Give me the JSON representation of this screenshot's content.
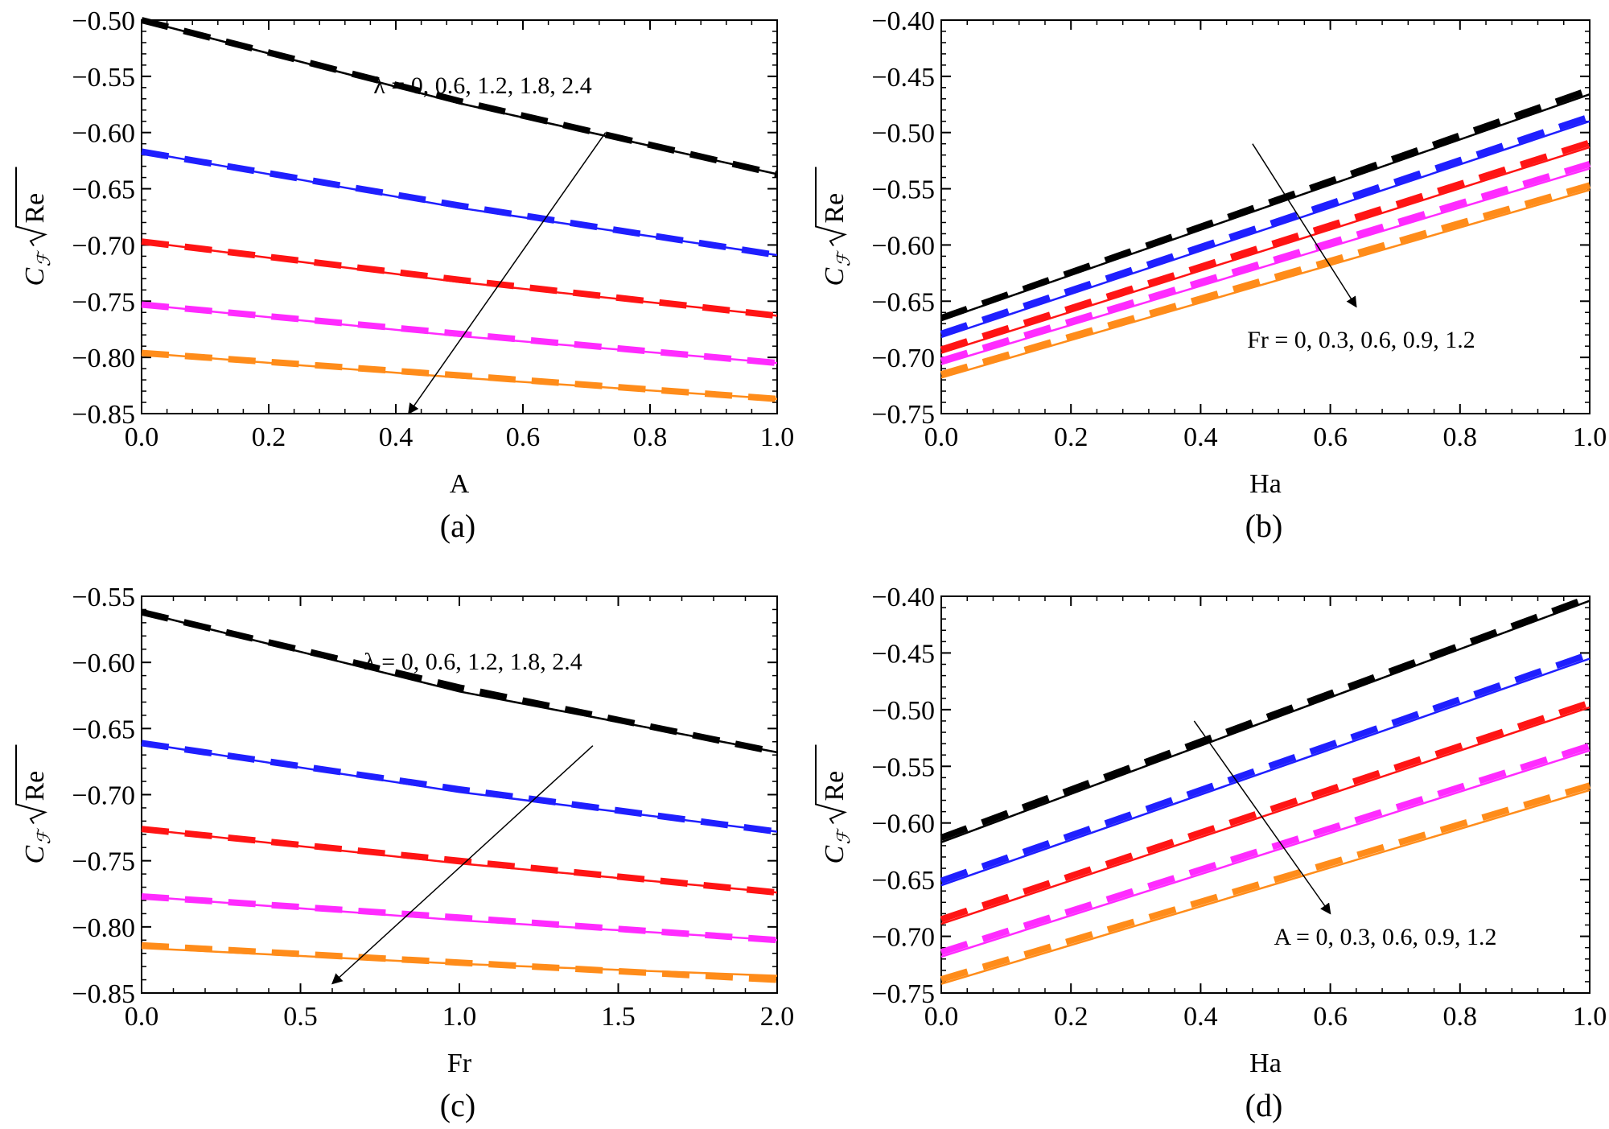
{
  "chart_data": [
    {
      "id": "a",
      "type": "line",
      "panel_label": "(a)",
      "xlabel": "A",
      "ylabel": {
        "main": "C",
        "sub": "ℱ",
        "radicand": "Re"
      },
      "xlim": [
        0,
        1.0
      ],
      "ylim": [
        -0.85,
        -0.5
      ],
      "xticks": [
        0.0,
        0.2,
        0.4,
        0.6,
        0.8,
        1.0
      ],
      "xtick_labels": [
        "0.0",
        "0.2",
        "0.4",
        "0.6",
        "0.8",
        "1.0"
      ],
      "yticks": [
        -0.85,
        -0.8,
        -0.75,
        -0.7,
        -0.65,
        -0.6,
        -0.55,
        -0.5
      ],
      "ytick_labels": [
        "−0.85",
        "−0.80",
        "−0.75",
        "−0.70",
        "−0.65",
        "−0.60",
        "−0.55",
        "−0.50"
      ],
      "annotation": "λ = 0, 0.6, 1.2, 1.8, 2.4",
      "arrow": {
        "from": [
          0.73,
          -0.6
        ],
        "to": [
          0.42,
          -0.85
        ]
      },
      "series": [
        {
          "name": "λ = 0",
          "color": "#000000",
          "x": [
            0,
            0.5,
            1.0
          ],
          "solid": [
            -0.5,
            -0.574,
            -0.637
          ],
          "dashed": [
            -0.5,
            -0.572,
            -0.637
          ]
        },
        {
          "name": "λ = 0.6",
          "color": "#1f1fff",
          "x": [
            0,
            0.5,
            1.0
          ],
          "solid": [
            -0.617,
            -0.667,
            -0.709
          ],
          "dashed": [
            -0.617,
            -0.665,
            -0.709
          ]
        },
        {
          "name": "λ = 1.2",
          "color": "#ff1414",
          "x": [
            0,
            0.5,
            1.0
          ],
          "solid": [
            -0.697,
            -0.733,
            -0.763
          ],
          "dashed": [
            -0.697,
            -0.731,
            -0.763
          ]
        },
        {
          "name": "λ = 1.8",
          "color": "#ff2bff",
          "x": [
            0,
            0.5,
            1.0
          ],
          "solid": [
            -0.753,
            -0.781,
            -0.805
          ],
          "dashed": [
            -0.753,
            -0.779,
            -0.805
          ]
        },
        {
          "name": "λ = 2.4",
          "color": "#ff8c1a",
          "x": [
            0,
            0.5,
            1.0
          ],
          "solid": [
            -0.796,
            -0.818,
            -0.837
          ],
          "dashed": [
            -0.796,
            -0.816,
            -0.837
          ]
        }
      ]
    },
    {
      "id": "b",
      "type": "line",
      "panel_label": "(b)",
      "xlabel": "Ha",
      "ylabel": {
        "main": "C",
        "sub": "ℱ",
        "radicand": "Re"
      },
      "xlim": [
        0,
        1.0
      ],
      "ylim": [
        -0.75,
        -0.4
      ],
      "xticks": [
        0.0,
        0.2,
        0.4,
        0.6,
        0.8,
        1.0
      ],
      "xtick_labels": [
        "0.0",
        "0.2",
        "0.4",
        "0.6",
        "0.8",
        "1.0"
      ],
      "yticks": [
        -0.75,
        -0.7,
        -0.65,
        -0.6,
        -0.55,
        -0.5,
        -0.45,
        -0.4
      ],
      "ytick_labels": [
        "−0.75",
        "−0.70",
        "−0.65",
        "−0.60",
        "−0.55",
        "−0.50",
        "−0.45",
        "−0.40"
      ],
      "annotation": "Fr = 0, 0.3, 0.6, 0.9, 1.2",
      "arrow": {
        "from": [
          0.48,
          -0.51
        ],
        "to": [
          0.64,
          -0.655
        ]
      },
      "series": [
        {
          "name": "Fr = 0",
          "color": "#000000",
          "x": [
            0,
            1.0
          ],
          "solid": [
            -0.667,
            -0.466
          ],
          "dashed": [
            -0.665,
            -0.462
          ]
        },
        {
          "name": "Fr = 0.3",
          "color": "#1f1fff",
          "x": [
            0,
            1.0
          ],
          "solid": [
            -0.682,
            -0.49
          ],
          "dashed": [
            -0.679,
            -0.486
          ]
        },
        {
          "name": "Fr = 0.6",
          "color": "#ff1414",
          "x": [
            0,
            1.0
          ],
          "solid": [
            -0.696,
            -0.513
          ],
          "dashed": [
            -0.693,
            -0.509
          ]
        },
        {
          "name": "Fr = 0.9",
          "color": "#ff2bff",
          "x": [
            0,
            1.0
          ],
          "solid": [
            -0.706,
            -0.532
          ],
          "dashed": [
            -0.703,
            -0.528
          ]
        },
        {
          "name": "Fr = 1.2",
          "color": "#ff8c1a",
          "x": [
            0,
            1.0
          ],
          "solid": [
            -0.718,
            -0.551
          ],
          "dashed": [
            -0.715,
            -0.547
          ]
        }
      ]
    },
    {
      "id": "c",
      "type": "line",
      "panel_label": "(c)",
      "xlabel": "Fr",
      "ylabel": {
        "main": "C",
        "sub": "ℱ",
        "radicand": "Re"
      },
      "xlim": [
        0,
        2.0
      ],
      "ylim": [
        -0.85,
        -0.55
      ],
      "xticks": [
        0.0,
        0.5,
        1.0,
        1.5,
        2.0
      ],
      "xtick_labels": [
        "0.0",
        "0.5",
        "1.0",
        "1.5",
        "2.0"
      ],
      "yticks": [
        -0.85,
        -0.8,
        -0.75,
        -0.7,
        -0.65,
        -0.6,
        -0.55
      ],
      "ytick_labels": [
        "−0.85",
        "−0.80",
        "−0.75",
        "−0.70",
        "−0.65",
        "−0.60",
        "−0.55"
      ],
      "annotation": "λ = 0, 0.6, 1.2, 1.8, 2.4",
      "arrow": {
        "from": [
          1.42,
          -0.663
        ],
        "to": [
          0.6,
          -0.843
        ]
      },
      "series": [
        {
          "name": "λ = 0",
          "color": "#000000",
          "x": [
            0,
            1.0,
            2.0
          ],
          "solid": [
            -0.562,
            -0.622,
            -0.668
          ],
          "dashed": [
            -0.562,
            -0.619,
            -0.668
          ]
        },
        {
          "name": "λ = 0.6",
          "color": "#1f1fff",
          "x": [
            0,
            1.0,
            2.0
          ],
          "solid": [
            -0.661,
            -0.698,
            -0.728
          ],
          "dashed": [
            -0.661,
            -0.696,
            -0.728
          ]
        },
        {
          "name": "λ = 1.2",
          "color": "#ff1414",
          "x": [
            0,
            1.0,
            2.0
          ],
          "solid": [
            -0.726,
            -0.752,
            -0.774
          ],
          "dashed": [
            -0.726,
            -0.75,
            -0.774
          ]
        },
        {
          "name": "λ = 1.8",
          "color": "#ff2bff",
          "x": [
            0,
            1.0,
            2.0
          ],
          "solid": [
            -0.777,
            -0.795,
            -0.81
          ],
          "dashed": [
            -0.777,
            -0.793,
            -0.81
          ]
        },
        {
          "name": "λ = 2.4",
          "color": "#ff8c1a",
          "x": [
            0,
            1.0,
            2.0
          ],
          "solid": [
            -0.816,
            -0.828,
            -0.837
          ],
          "dashed": [
            -0.814,
            -0.827,
            -0.84
          ]
        }
      ]
    },
    {
      "id": "d",
      "type": "line",
      "panel_label": "(d)",
      "xlabel": "Ha",
      "ylabel": {
        "main": "C",
        "sub": "ℱ",
        "radicand": "Re"
      },
      "xlim": [
        0,
        1.0
      ],
      "ylim": [
        -0.75,
        -0.4
      ],
      "xticks": [
        0.0,
        0.2,
        0.4,
        0.6,
        0.8,
        1.0
      ],
      "xtick_labels": [
        "0.0",
        "0.2",
        "0.4",
        "0.6",
        "0.8",
        "1.0"
      ],
      "yticks": [
        -0.75,
        -0.7,
        -0.65,
        -0.6,
        -0.55,
        -0.5,
        -0.45,
        -0.4
      ],
      "ytick_labels": [
        "−0.75",
        "−0.70",
        "−0.65",
        "−0.60",
        "−0.55",
        "−0.50",
        "−0.45",
        "−0.40"
      ],
      "annotation": "A = 0, 0.3, 0.6, 0.9, 1.2",
      "arrow": {
        "from": [
          0.39,
          -0.51
        ],
        "to": [
          0.6,
          -0.68
        ]
      },
      "series": [
        {
          "name": "A = 0",
          "color": "#000000",
          "x": [
            0,
            1.0
          ],
          "solid": [
            -0.617,
            -0.404
          ],
          "dashed": [
            -0.613,
            -0.401
          ]
        },
        {
          "name": "A = 0.3",
          "color": "#1f1fff",
          "x": [
            0,
            1.0
          ],
          "solid": [
            -0.655,
            -0.455
          ],
          "dashed": [
            -0.651,
            -0.451
          ]
        },
        {
          "name": "A = 0.6",
          "color": "#ff1414",
          "x": [
            0,
            1.0
          ],
          "solid": [
            -0.689,
            -0.498
          ],
          "dashed": [
            -0.685,
            -0.494
          ]
        },
        {
          "name": "A = 0.9",
          "color": "#ff2bff",
          "x": [
            0,
            1.0
          ],
          "solid": [
            -0.718,
            -0.536
          ],
          "dashed": [
            -0.714,
            -0.532
          ]
        },
        {
          "name": "A = 1.2",
          "color": "#ff8c1a",
          "x": [
            0,
            1.0
          ],
          "solid": [
            -0.742,
            -0.571
          ],
          "dashed": [
            -0.738,
            -0.567
          ]
        }
      ]
    }
  ]
}
